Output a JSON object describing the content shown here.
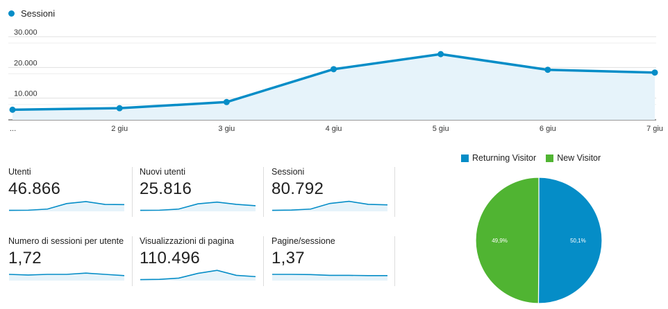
{
  "chart_data": [
    {
      "type": "area",
      "series": [
        {
          "name": "Sessioni",
          "values": [
            3300,
            3800,
            5800,
            16500,
            21400,
            16300,
            15400
          ]
        }
      ],
      "categories": [
        "...",
        "2 giu",
        "3 giu",
        "4 giu",
        "5 giu",
        "6 giu",
        "7 giu"
      ],
      "y_ticks": [
        "10.000",
        "20.000",
        "30.000"
      ],
      "ylim": [
        0,
        30000
      ],
      "grid": true,
      "color": "#058dc7"
    },
    {
      "type": "pie",
      "categories": [
        "Returning Visitor",
        "New Visitor"
      ],
      "values": [
        50.1,
        49.9
      ],
      "slice_labels": [
        "50,1%",
        "49,9%"
      ],
      "colors": [
        "#058dc7",
        "#50b432"
      ],
      "legend": "top"
    }
  ],
  "legend_label": "Sessioni",
  "metrics": [
    {
      "label": "Utenti",
      "value": "46.866",
      "spark": [
        0.08,
        0.09,
        0.18,
        0.62,
        0.78,
        0.55,
        0.54
      ]
    },
    {
      "label": "Nuovi utenti",
      "value": "25.816",
      "spark": [
        0.08,
        0.09,
        0.18,
        0.6,
        0.74,
        0.56,
        0.45
      ]
    },
    {
      "label": "Sessioni",
      "value": "80.792",
      "spark": [
        0.08,
        0.1,
        0.18,
        0.63,
        0.8,
        0.56,
        0.52
      ]
    },
    {
      "label": "Numero di sessioni per utente",
      "value": "1,72",
      "spark": [
        0.5,
        0.45,
        0.5,
        0.5,
        0.6,
        0.5,
        0.4
      ]
    },
    {
      "label": "Visualizzazioni di pagina",
      "value": "110.496",
      "spark": [
        0.08,
        0.1,
        0.2,
        0.58,
        0.82,
        0.42,
        0.32
      ]
    },
    {
      "label": "Pagine/sessione",
      "value": "1,37",
      "spark": [
        0.5,
        0.5,
        0.48,
        0.42,
        0.42,
        0.4,
        0.4
      ]
    }
  ],
  "colors": {
    "accent": "#058dc7",
    "accent_fill": "#e6f3fa",
    "grid": "#e0e0e0",
    "green": "#50b432"
  }
}
